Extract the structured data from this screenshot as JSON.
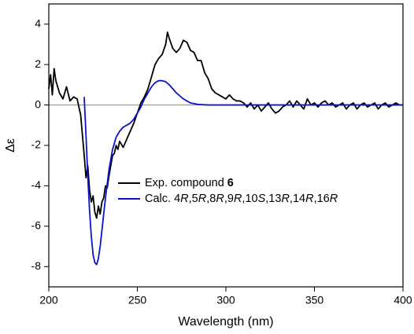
{
  "chart_data": {
    "type": "line",
    "xlabel": "Wavelength (nm)",
    "ylabel": "Δε",
    "xlim": [
      200,
      400
    ],
    "ylim": [
      -9,
      5
    ],
    "xticks": [
      200,
      250,
      300,
      350,
      400
    ],
    "yticks": [
      -8,
      -6,
      -4,
      -2,
      0,
      2,
      4
    ],
    "zero_line": true,
    "zero_line_color": "#888888",
    "series": [
      {
        "name": "Exp. compound 6",
        "color": "#000000",
        "x": [
          200,
          201,
          202,
          203,
          204,
          206,
          208,
          210,
          212,
          214,
          216,
          218,
          219,
          220,
          221,
          222,
          223,
          224,
          225,
          226,
          227,
          228,
          229,
          230,
          231,
          232,
          233,
          234,
          235,
          236,
          237,
          238,
          239,
          240,
          242,
          244,
          246,
          248,
          250,
          252,
          254,
          256,
          258,
          260,
          262,
          264,
          266,
          267,
          268,
          270,
          272,
          274,
          276,
          278,
          280,
          282,
          284,
          286,
          288,
          290,
          292,
          294,
          296,
          298,
          300,
          302,
          304,
          306,
          308,
          310,
          312,
          314,
          316,
          318,
          320,
          322,
          324,
          326,
          328,
          330,
          332,
          334,
          336,
          338,
          340,
          342,
          344,
          346,
          348,
          350,
          352,
          354,
          356,
          358,
          360,
          362,
          364,
          366,
          368,
          370,
          372,
          374,
          376,
          378,
          380,
          382,
          384,
          386,
          388,
          390,
          392,
          394,
          396,
          398,
          400
        ],
        "values": [
          0.8,
          1.5,
          0.5,
          1.8,
          1.2,
          0.6,
          0.3,
          0.9,
          0.2,
          0.4,
          0.3,
          -0.5,
          -1.5,
          -2.5,
          -3.6,
          -3.0,
          -4.2,
          -4.8,
          -4.5,
          -5.3,
          -5.6,
          -5.0,
          -5.4,
          -4.8,
          -4.6,
          -4.0,
          -4.1,
          -3.5,
          -3.0,
          -2.5,
          -2.4,
          -2.0,
          -2.2,
          -1.8,
          -2.1,
          -1.7,
          -1.3,
          -0.9,
          -0.4,
          0.1,
          0.4,
          0.8,
          1.4,
          2.0,
          2.3,
          2.5,
          3.0,
          3.6,
          3.3,
          2.8,
          2.6,
          2.8,
          3.2,
          3.1,
          2.7,
          2.6,
          2.2,
          2.2,
          1.6,
          1.3,
          0.8,
          0.6,
          0.5,
          0.4,
          0.3,
          0.5,
          0.3,
          0.2,
          0.2,
          0.1,
          -0.1,
          0.1,
          -0.2,
          0.0,
          -0.3,
          -0.1,
          0.1,
          -0.2,
          -0.4,
          -0.3,
          -0.1,
          0.0,
          0.2,
          -0.1,
          0.2,
          0.0,
          -0.2,
          0.3,
          0.0,
          0.1,
          -0.1,
          0.1,
          0.2,
          0.0,
          0.1,
          -0.1,
          0.0,
          0.1,
          -0.2,
          0.0,
          0.1,
          -0.2,
          0.0,
          0.1,
          -0.1,
          0.0,
          0.1,
          -0.2,
          0.0,
          0.1,
          -0.1,
          0.0,
          0.1,
          0.0,
          0.0
        ]
      },
      {
        "name": "Calc. 4R,5R,8R,9R,10S,13R,14R,16R",
        "color": "#0a14c8",
        "x": [
          220,
          221,
          222,
          223,
          224,
          225,
          226,
          227,
          228,
          229,
          230,
          232,
          234,
          236,
          238,
          240,
          242,
          244,
          246,
          248,
          250,
          252,
          254,
          256,
          258,
          260,
          262,
          264,
          266,
          268,
          270,
          272,
          274,
          276,
          278,
          280,
          284,
          290,
          300,
          350,
          400
        ],
        "values": [
          0.4,
          -1.5,
          -3.5,
          -5.2,
          -6.5,
          -7.4,
          -7.8,
          -7.9,
          -7.6,
          -7.0,
          -6.2,
          -4.6,
          -3.2,
          -2.2,
          -1.6,
          -1.3,
          -1.1,
          -1.0,
          -0.9,
          -0.7,
          -0.4,
          -0.1,
          0.3,
          0.6,
          0.9,
          1.1,
          1.2,
          1.2,
          1.15,
          1.0,
          0.8,
          0.6,
          0.45,
          0.3,
          0.2,
          0.1,
          0.03,
          0,
          0,
          0,
          0
        ]
      }
    ]
  }
}
